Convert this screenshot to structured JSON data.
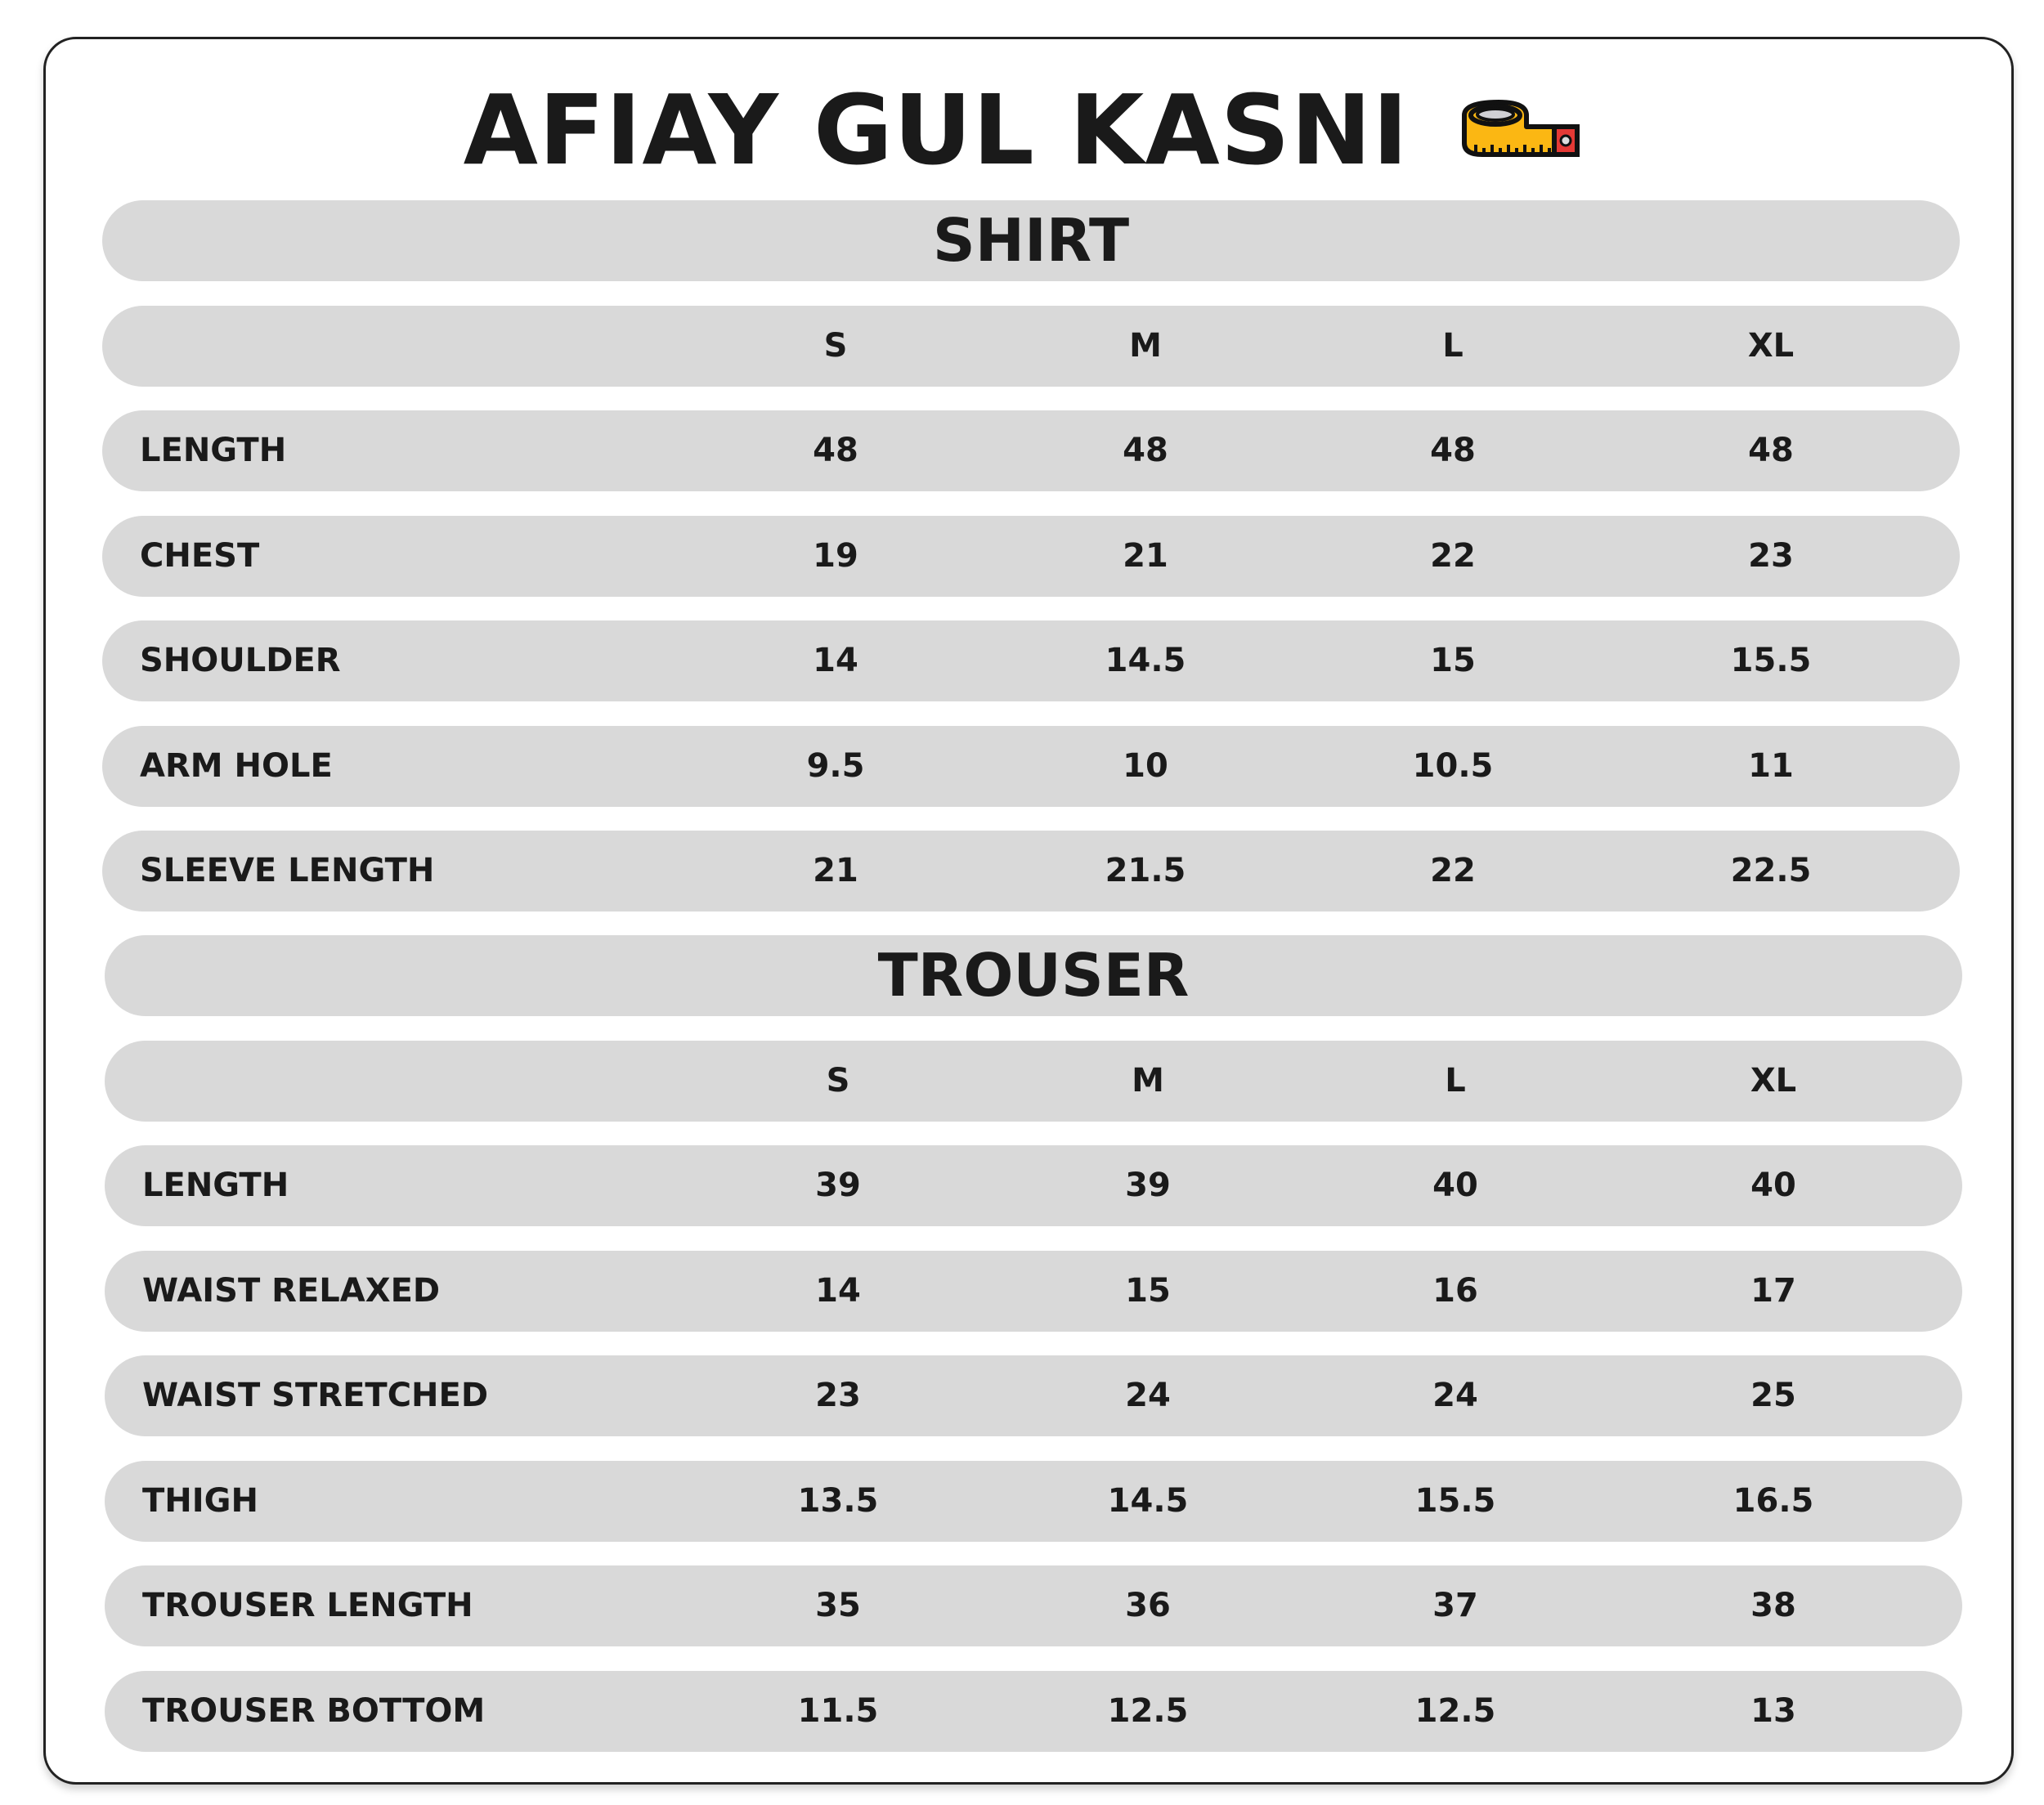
{
  "title": "AFIAY GUL KASNI",
  "title_icon": "measuring-tape-icon",
  "sizes": [
    "S",
    "M",
    "L",
    "XL"
  ],
  "shirt": {
    "heading": "SHIRT",
    "rows": [
      {
        "label": "LENGTH",
        "values": [
          "48",
          "48",
          "48",
          "48"
        ]
      },
      {
        "label": "CHEST",
        "values": [
          "19",
          "21",
          "22",
          "23"
        ]
      },
      {
        "label": "SHOULDER",
        "values": [
          "14",
          "14.5",
          "15",
          "15.5"
        ]
      },
      {
        "label": "ARM HOLE",
        "values": [
          "9.5",
          "10",
          "10.5",
          "11"
        ]
      },
      {
        "label": "SLEEVE LENGTH",
        "values": [
          "21",
          "21.5",
          "22",
          "22.5"
        ]
      }
    ]
  },
  "trouser": {
    "heading": "TROUSER",
    "rows": [
      {
        "label": "LENGTH",
        "values": [
          "39",
          "39",
          "40",
          "40"
        ]
      },
      {
        "label": "WAIST RELAXED",
        "values": [
          "14",
          "15",
          "16",
          "17"
        ]
      },
      {
        "label": "WAIST STRETCHED",
        "values": [
          "23",
          "24",
          "24",
          "25"
        ]
      },
      {
        "label": "THIGH",
        "values": [
          "13.5",
          "14.5",
          "15.5",
          "16.5"
        ]
      },
      {
        "label": "TROUSER LENGTH",
        "values": [
          "35",
          "36",
          "37",
          "38"
        ]
      },
      {
        "label": "TROUSER BOTTOM",
        "values": [
          "11.5",
          "12.5",
          "12.5",
          "13"
        ]
      }
    ]
  },
  "colors": {
    "row_bg": "#d9d9d9",
    "tape_yellow": "#fbb713",
    "tape_red": "#e53935"
  }
}
